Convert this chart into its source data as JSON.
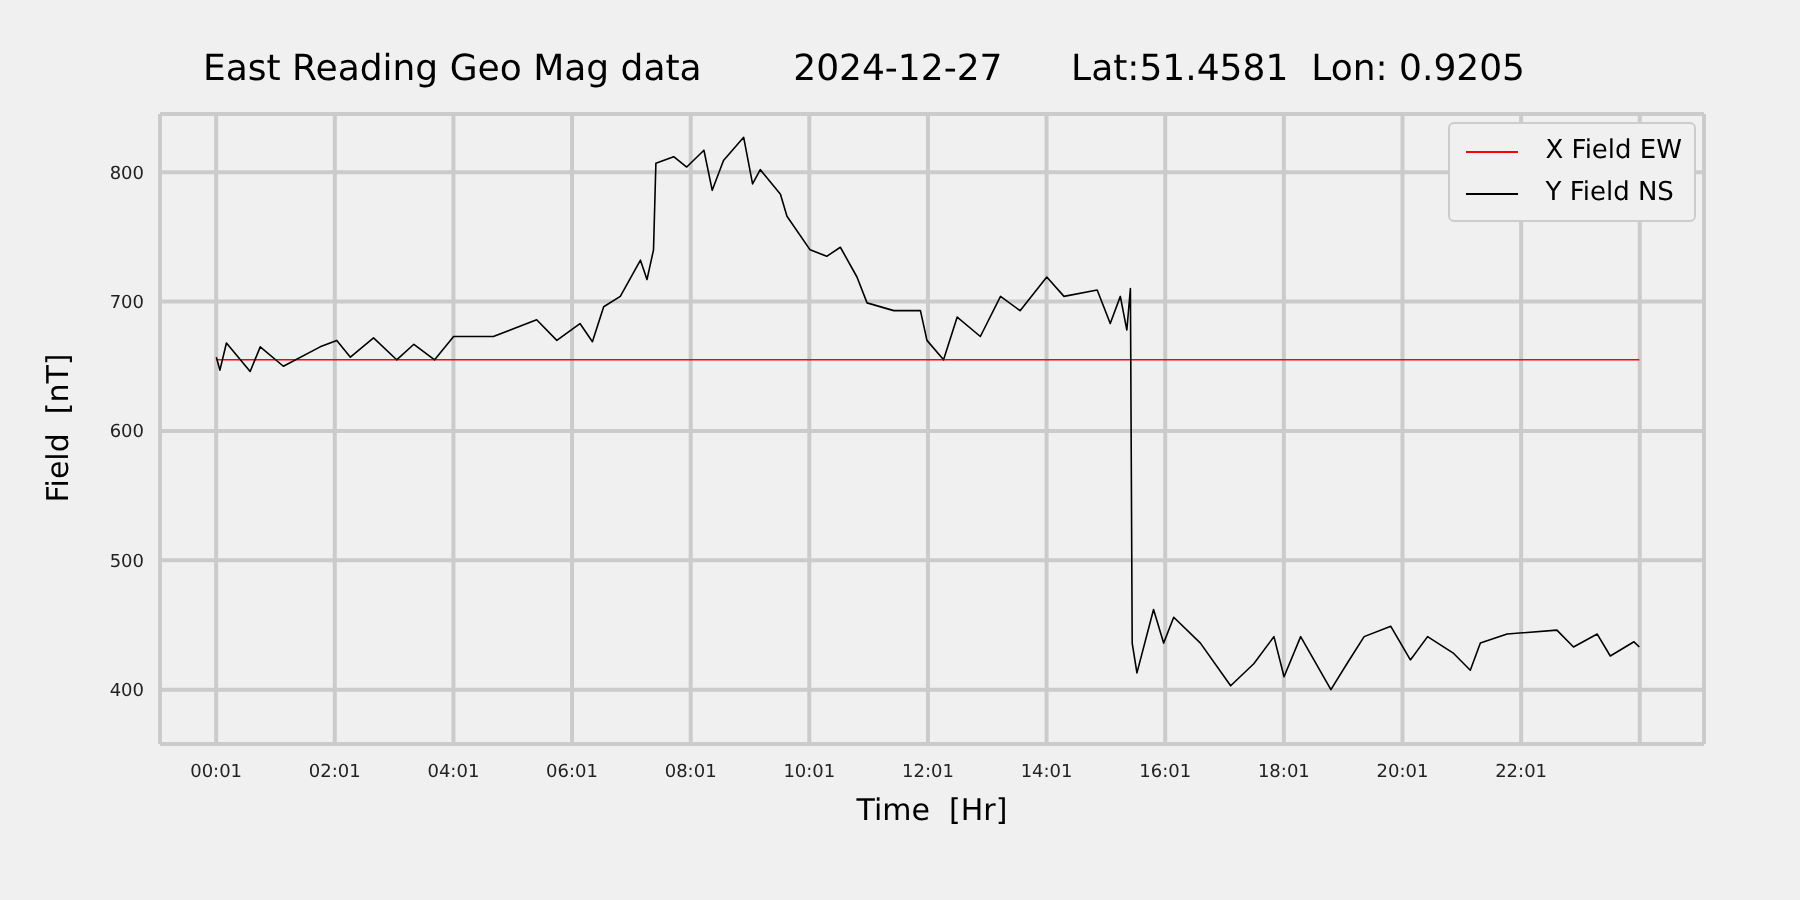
{
  "chart_data": {
    "type": "line",
    "title": "East Reading Geo Mag data        2024-12-27      Lat:51.4581  Lon: 0.9205",
    "xlabel": "Time  [Hr]",
    "ylabel": "Field  [nT]",
    "xlim": [
      -0.93,
      25.1
    ],
    "ylim": [
      358,
      845
    ],
    "xticks": [
      {
        "value": 0.0167,
        "label": "00:01"
      },
      {
        "value": 2.0167,
        "label": "02:01"
      },
      {
        "value": 4.0167,
        "label": "04:01"
      },
      {
        "value": 6.0167,
        "label": "06:01"
      },
      {
        "value": 8.0167,
        "label": "08:01"
      },
      {
        "value": 10.0167,
        "label": "10:01"
      },
      {
        "value": 12.0167,
        "label": "12:01"
      },
      {
        "value": 14.0167,
        "label": "14:01"
      },
      {
        "value": 16.0167,
        "label": "16:01"
      },
      {
        "value": 18.0167,
        "label": "18:01"
      },
      {
        "value": 20.0167,
        "label": "20:01"
      },
      {
        "value": 22.0167,
        "label": "22:01"
      },
      {
        "value": 24.0167,
        "label": null
      }
    ],
    "yticks": [
      400,
      500,
      600,
      700,
      800
    ],
    "grid": true,
    "legend": "top right",
    "line_style": "solid",
    "marker": "none",
    "series": [
      {
        "name": "X Field EW",
        "color": "#ff0000",
        "x": [
          0.02,
          24.01
        ],
        "values": [
          655,
          655
        ]
      },
      {
        "name": "Y Field NS",
        "color": "#000000",
        "x": [
          0.02,
          0.08,
          0.19,
          0.59,
          0.76,
          1.15,
          1.77,
          2.05,
          2.28,
          2.67,
          3.06,
          3.35,
          3.7,
          4.02,
          4.69,
          5.42,
          5.76,
          6.15,
          6.36,
          6.55,
          6.83,
          7.17,
          7.28,
          7.39,
          7.43,
          7.73,
          7.95,
          8.24,
          8.38,
          8.57,
          8.91,
          9.06,
          9.19,
          9.53,
          9.64,
          10.03,
          10.31,
          10.54,
          10.82,
          10.99,
          11.44,
          11.89,
          12.0,
          12.28,
          12.51,
          12.9,
          13.24,
          13.57,
          14.02,
          14.31,
          14.87,
          15.09,
          15.26,
          15.37,
          15.43,
          15.46,
          15.54,
          15.82,
          15.99,
          16.16,
          16.61,
          17.12,
          17.51,
          17.85,
          18.02,
          18.3,
          18.81,
          19.08,
          19.37,
          19.82,
          20.15,
          20.44,
          20.88,
          21.16,
          21.33,
          21.78,
          22.62,
          22.9,
          23.3,
          23.52,
          23.92,
          24.01
        ],
        "values": [
          657,
          647,
          668,
          646,
          665,
          650,
          665,
          670,
          657,
          672,
          655,
          667,
          655,
          673,
          673,
          686,
          670,
          683,
          669,
          696,
          704,
          732,
          717,
          740,
          807,
          812,
          804,
          817,
          786,
          809,
          827,
          791,
          802,
          783,
          766,
          740,
          735,
          742,
          719,
          699,
          693,
          693,
          670,
          655,
          688,
          673,
          704,
          693,
          719,
          704,
          709,
          683,
          704,
          678,
          710,
          436,
          413,
          462,
          436,
          456,
          436,
          403,
          420,
          441,
          410,
          441,
          400,
          420,
          441,
          449,
          423,
          441,
          428,
          415,
          436,
          443,
          446,
          433,
          443,
          426,
          437,
          433
        ]
      }
    ]
  }
}
